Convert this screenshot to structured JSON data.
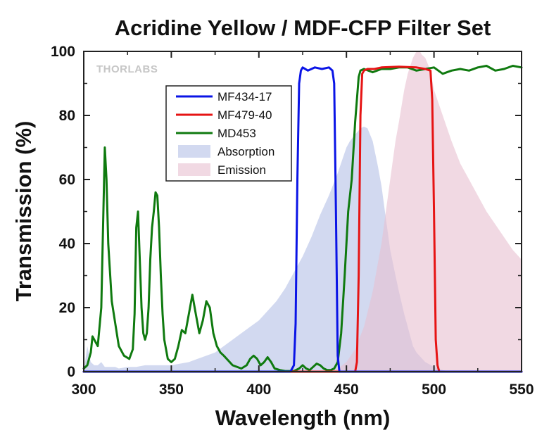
{
  "chart_data": {
    "type": "line",
    "title": "Acridine Yellow / MDF-CFP Filter Set",
    "watermark": "THORLABS",
    "xlabel": "Wavelength (nm)",
    "ylabel": "Transmission (%)",
    "xlim": [
      300,
      550
    ],
    "ylim": [
      0,
      100
    ],
    "xticks": [
      300,
      350,
      400,
      450,
      500,
      550
    ],
    "yticks": [
      0,
      20,
      40,
      60,
      80,
      100
    ],
    "grid": false,
    "legend_position": "upper-left inside plot",
    "series": [
      {
        "name": "MF434-17",
        "kind": "line",
        "color": "#0a14e6",
        "x": [
          300,
          418,
          420,
          421,
          422,
          423,
          424,
          425,
          428,
          432,
          436,
          440,
          442,
          443,
          444,
          445,
          446,
          550
        ],
        "y": [
          0,
          0,
          2,
          15,
          60,
          90,
          94,
          95,
          94,
          95,
          94.5,
          95,
          94,
          90,
          50,
          5,
          0,
          0
        ]
      },
      {
        "name": "MF479-40",
        "kind": "line",
        "color": "#e61414",
        "x": [
          300,
          455,
          456,
          457,
          458,
          459,
          460,
          462,
          466,
          470,
          480,
          490,
          495,
          498,
          499,
          500,
          501,
          502,
          503,
          550
        ],
        "y": [
          0,
          0,
          3,
          30,
          80,
          93,
          94,
          94.5,
          94.5,
          95,
          95.2,
          95,
          94.5,
          94,
          85,
          50,
          10,
          2,
          0,
          0
        ]
      },
      {
        "name": "MD453",
        "kind": "line",
        "color": "#0f7a0f",
        "x": [
          300,
          302,
          304,
          305,
          306,
          308,
          310,
          311,
          312,
          313,
          314,
          316,
          318,
          320,
          323,
          326,
          328,
          329,
          330,
          331,
          332,
          333,
          334,
          335,
          336,
          337,
          338,
          339,
          340,
          341,
          342,
          343,
          344,
          345,
          346,
          348,
          350,
          352,
          354,
          356,
          358,
          360,
          362,
          364,
          366,
          368,
          370,
          372,
          374,
          376,
          378,
          380,
          385,
          390,
          393,
          395,
          397,
          399,
          401,
          403,
          405,
          407,
          409,
          412,
          415,
          420,
          423,
          425,
          427,
          429,
          431,
          433,
          435,
          437,
          439,
          441,
          443,
          445,
          447,
          449,
          451,
          453,
          455,
          457,
          458,
          460,
          465,
          470,
          475,
          480,
          485,
          490,
          495,
          500,
          505,
          510,
          515,
          520,
          525,
          530,
          535,
          540,
          545,
          550
        ],
        "y": [
          1,
          2,
          6,
          11,
          10,
          8,
          20,
          45,
          70,
          60,
          40,
          22,
          15,
          8,
          5,
          4,
          7,
          18,
          45,
          50,
          35,
          20,
          12,
          10,
          12,
          20,
          35,
          45,
          50,
          56,
          55,
          45,
          30,
          18,
          10,
          4,
          3,
          4,
          8,
          13,
          12,
          18,
          24,
          18,
          12,
          16,
          22,
          20,
          12,
          8,
          6,
          5,
          2,
          1,
          2,
          4,
          5,
          4,
          2,
          3,
          4.5,
          3,
          1,
          0.5,
          0.2,
          0.2,
          1,
          2,
          1,
          0.5,
          1.5,
          2.5,
          2,
          1,
          0.5,
          0.5,
          1,
          3,
          12,
          30,
          50,
          60,
          78,
          92,
          94,
          94.5,
          93.5,
          94.5,
          94.5,
          95,
          95,
          94,
          94.5,
          95,
          93,
          94,
          94.5,
          94,
          95,
          95.5,
          94,
          94.5,
          95.5,
          95
        ]
      },
      {
        "name": "Absorption",
        "kind": "area",
        "color": "#b4c0e6",
        "x": [
          300,
          302,
          304,
          306,
          308,
          310,
          312,
          314,
          316,
          318,
          320,
          325,
          330,
          335,
          340,
          345,
          350,
          355,
          360,
          365,
          370,
          375,
          380,
          385,
          390,
          395,
          400,
          405,
          410,
          415,
          420,
          425,
          430,
          435,
          440,
          445,
          450,
          452,
          455,
          458,
          460,
          462,
          465,
          468,
          470,
          472,
          475,
          478,
          480,
          483,
          485,
          488,
          490,
          495,
          500,
          505,
          510,
          550
        ],
        "y": [
          0,
          8,
          3,
          2,
          2,
          3,
          1.5,
          1.5,
          1.5,
          1.5,
          1,
          1.5,
          1.5,
          2,
          2,
          2,
          2,
          2.5,
          3,
          4,
          5,
          6,
          8,
          10,
          12,
          14,
          16,
          19,
          22,
          26,
          31,
          36,
          42,
          49,
          55,
          62,
          70,
          72,
          74,
          76,
          76.5,
          76,
          72,
          64,
          58,
          50,
          38,
          30,
          25,
          18,
          14,
          8,
          6,
          3,
          1.5,
          0.5,
          0,
          0
        ]
      },
      {
        "name": "Emission",
        "kind": "area",
        "color": "#e8bfd0",
        "x": [
          300,
          440,
          445,
          450,
          455,
          460,
          465,
          470,
          475,
          478,
          480,
          483,
          485,
          488,
          490,
          492,
          493,
          495,
          498,
          500,
          505,
          510,
          515,
          520,
          525,
          530,
          535,
          540,
          545,
          550
        ],
        "y": [
          0,
          0,
          1,
          3,
          7,
          14,
          25,
          40,
          60,
          72,
          78,
          88,
          93,
          98,
          100,
          100,
          99,
          98,
          94,
          88,
          80,
          72,
          65,
          60,
          55,
          50,
          46,
          42,
          38,
          35
        ]
      }
    ]
  }
}
